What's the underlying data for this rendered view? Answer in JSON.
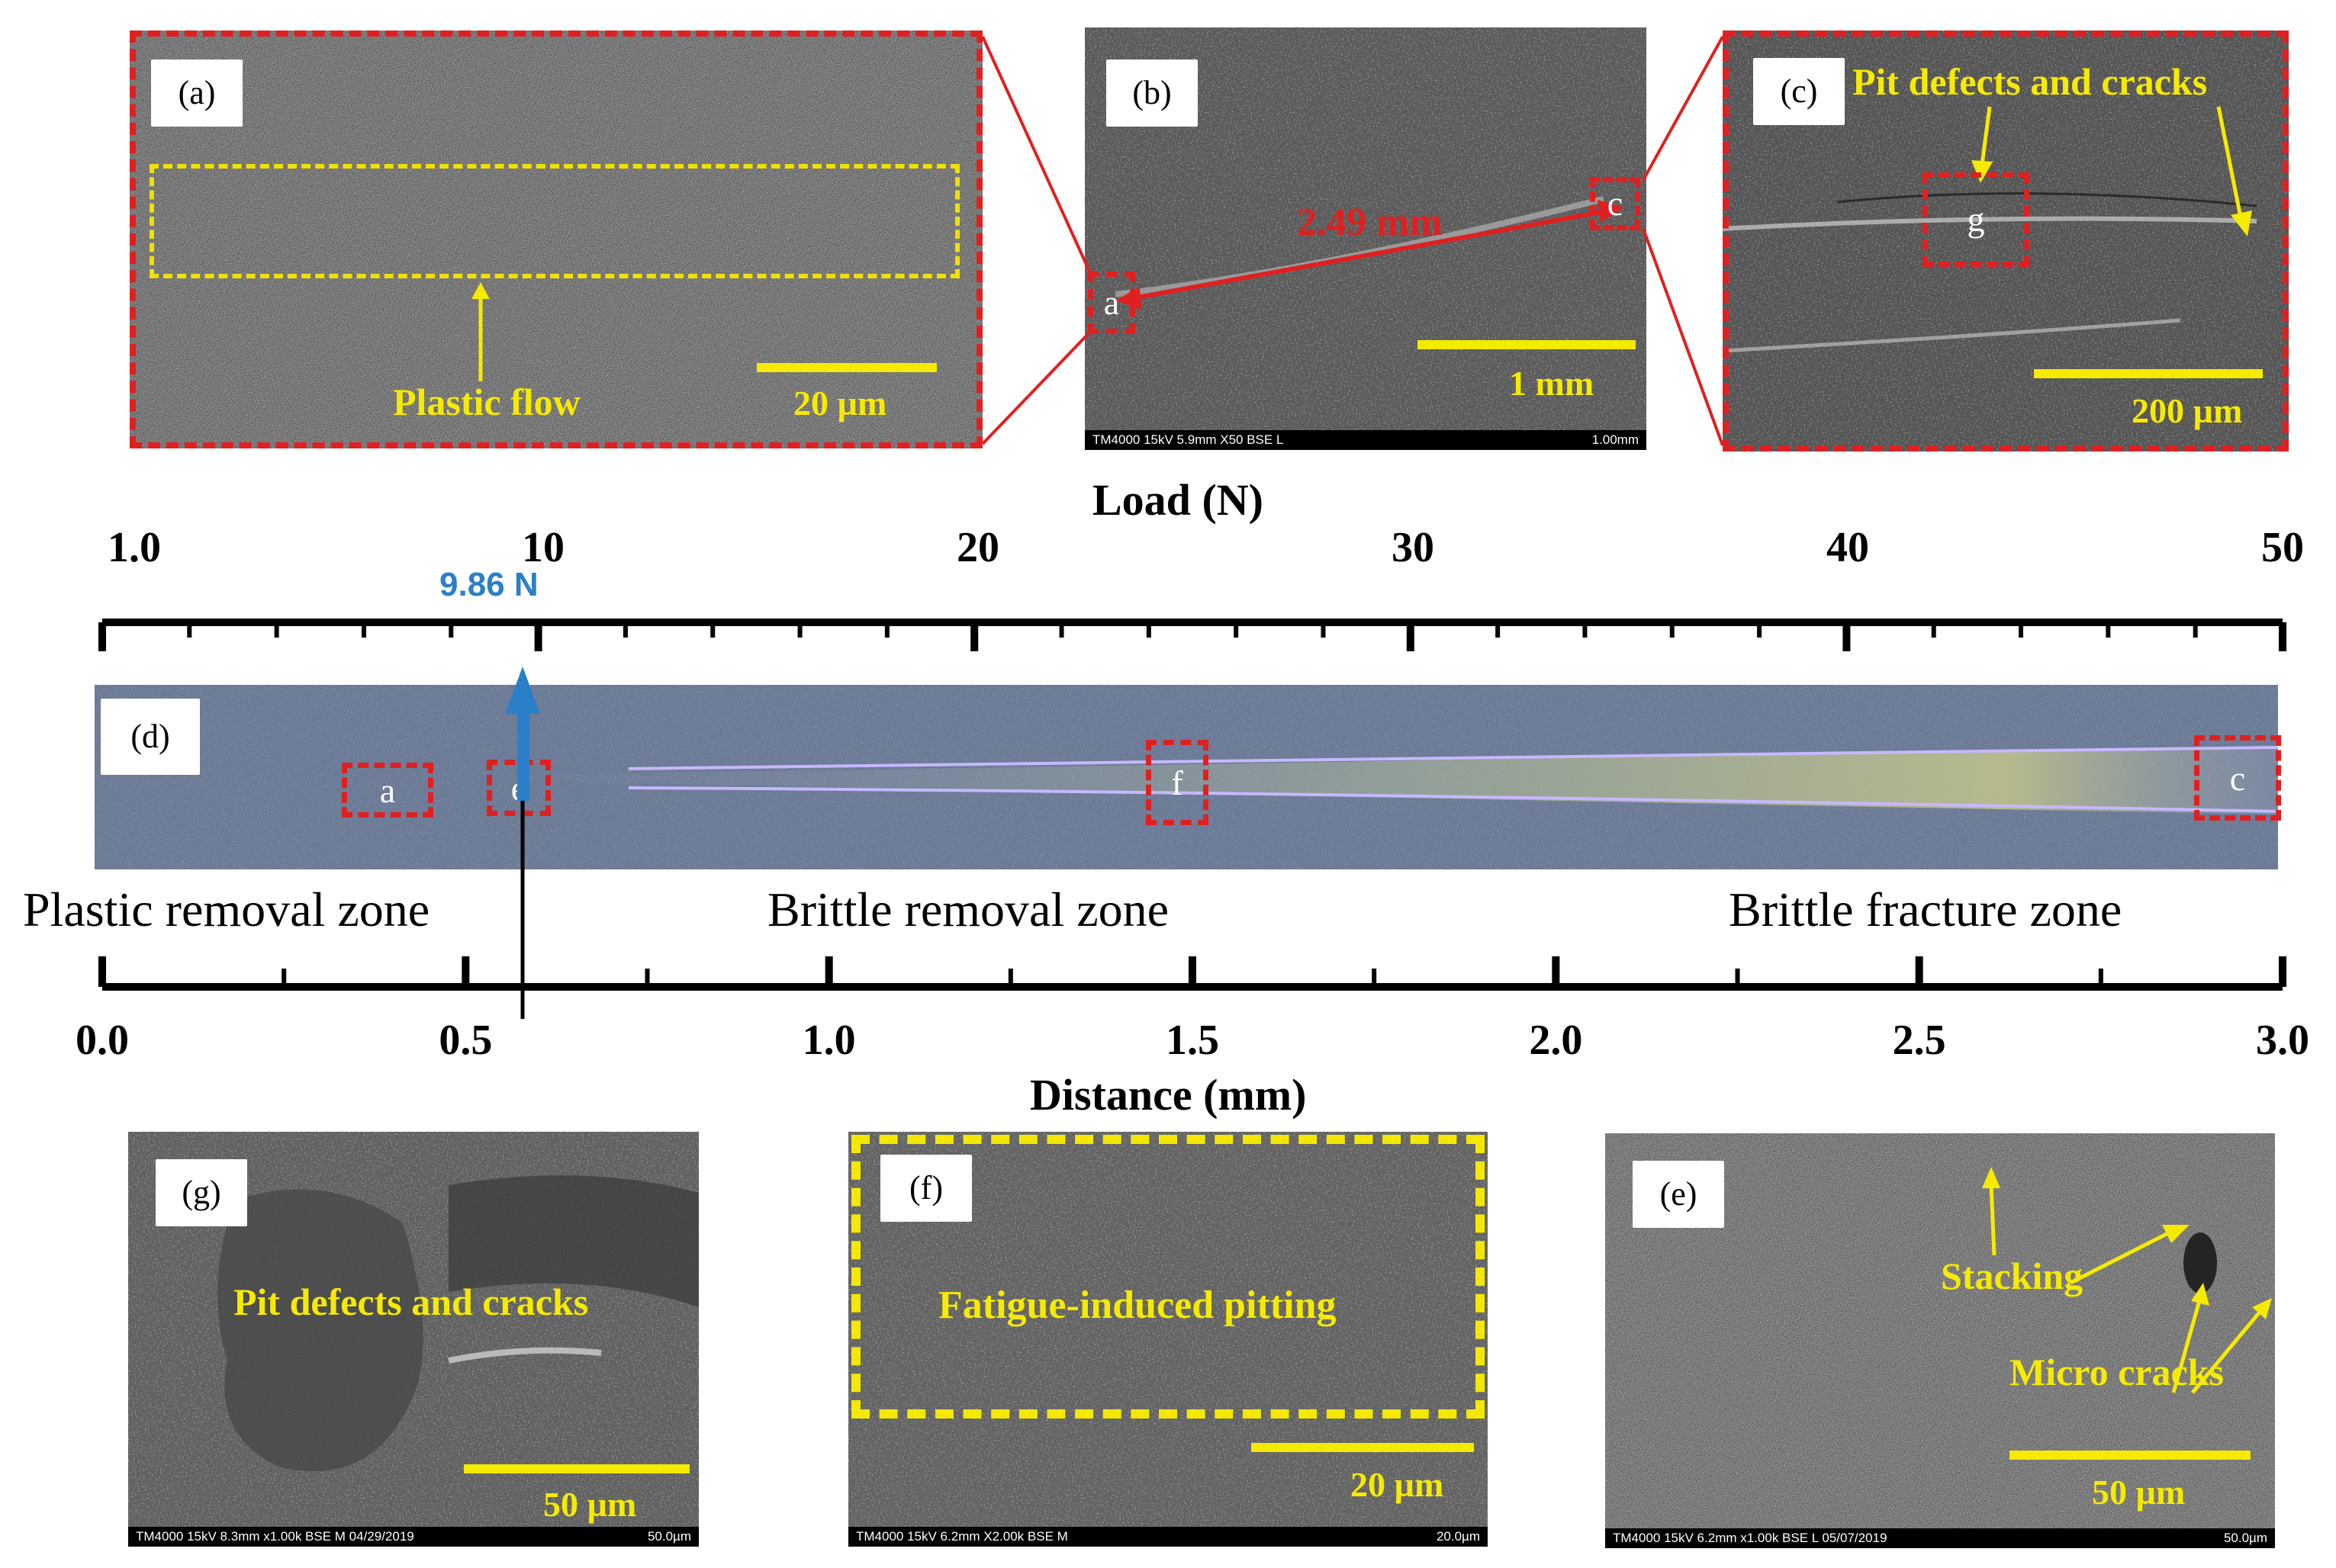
{
  "panels": {
    "a": {
      "tag": "(a)",
      "annotation": "Plastic  flow",
      "scale": "20 µm"
    },
    "b": {
      "tag": "(b)",
      "measurement": "2.49 mm",
      "marker_a": "a",
      "marker_c": "c",
      "scale": "1 mm",
      "footer_left": "TM4000 15kV 5.9mm X50 BSE L",
      "footer_right": "1.00mm"
    },
    "c": {
      "tag": "(c)",
      "annotation": "Pit defects and cracks",
      "marker_g": "g",
      "scale": "200 µm"
    },
    "d": {
      "tag": "(d)",
      "marker_a": "a",
      "marker_e": "e",
      "marker_f": "f",
      "marker_c": "c"
    },
    "g": {
      "tag": "(g)",
      "annotation": "Pit defects and cracks",
      "scale": "50 µm",
      "footer_left": "TM4000 15kV 8.3mm x1.00k BSE M 04/29/2019",
      "footer_right": "50.0µm"
    },
    "f": {
      "tag": "(f)",
      "annotation": "Fatigue-induced pitting",
      "scale": "20 µm",
      "footer_left": "TM4000 15kV 6.2mm X2.00k BSE M",
      "footer_right": "20.0µm"
    },
    "e": {
      "tag": "(e)",
      "annotation_1": "Stacking",
      "annotation_2": "Micro cracks",
      "scale": "50 µm",
      "footer_left": "TM4000 15kV 6.2mm x1.00k BSE L 05/07/2019",
      "footer_right": "50.0µm"
    }
  },
  "load_axis": {
    "label": "Load (N)",
    "ticks": [
      "1.0",
      "10",
      "20",
      "30",
      "40",
      "50"
    ],
    "critical_load": "9.86 N"
  },
  "distance_axis": {
    "label": "Distance (mm)",
    "ticks": [
      "0.0",
      "0.5",
      "1.0",
      "1.5",
      "2.0",
      "2.5",
      "3.0"
    ]
  },
  "zones": [
    "Plastic removal zone",
    "Brittle removal zone",
    "Brittle fracture zone"
  ],
  "colors": {
    "red": "#e02020",
    "yellow": "#f6ea00",
    "blue_arrow": "#2a7fc8",
    "track": "#6b7a96"
  }
}
